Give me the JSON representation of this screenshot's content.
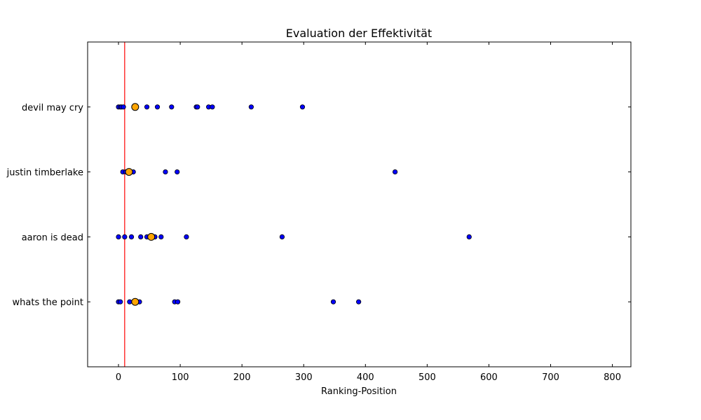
{
  "chart_data": {
    "type": "scatter",
    "title": "Evaluation der Effektivität",
    "xlabel": "Ranking-Position",
    "ylabel": "",
    "xlim": [
      -50,
      830
    ],
    "xticks": [
      0,
      100,
      200,
      300,
      400,
      500,
      600,
      700,
      800
    ],
    "xtick_labels": [
      "0",
      "100",
      "200",
      "300",
      "400",
      "500",
      "600",
      "700",
      "800"
    ],
    "grid": false,
    "reference_line": {
      "x": 10,
      "color": "#ff0000"
    },
    "point_color": "#0000ff",
    "highlight_color": "#ffa500",
    "categories": [
      "whats the point",
      "aaron is dead",
      "justin timberlake",
      "devil may cry"
    ],
    "series": [
      {
        "category": "devil may cry",
        "points": [
          0,
          3,
          5,
          8,
          46,
          63,
          86,
          126,
          128,
          146,
          152,
          215,
          298
        ],
        "highlight": 27
      },
      {
        "category": "justin timberlake",
        "points": [
          7,
          12,
          17,
          24,
          76,
          95,
          448
        ],
        "highlight": 17
      },
      {
        "category": "aaron is dead",
        "points": [
          0,
          10,
          21,
          36,
          46,
          59,
          69,
          110,
          265,
          568
        ],
        "highlight": 53
      },
      {
        "category": "whats the point",
        "points": [
          0,
          3,
          18,
          25,
          34,
          91,
          96,
          348,
          389
        ],
        "highlight": 27
      }
    ]
  }
}
